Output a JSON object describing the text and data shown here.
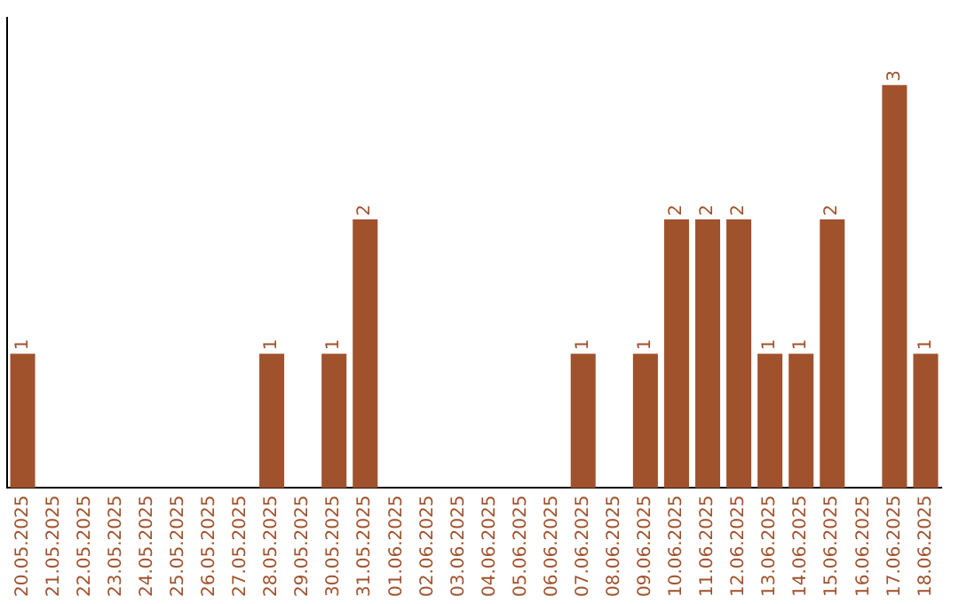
{
  "chart_data": {
    "type": "bar",
    "categories": [
      "20.05.2025",
      "21.05.2025",
      "22.05.2025",
      "23.05.2025",
      "24.05.2025",
      "25.05.2025",
      "26.05.2025",
      "27.05.2025",
      "28.05.2025",
      "29.05.2025",
      "30.05.2025",
      "31.05.2025",
      "01.06.2025",
      "02.06.2025",
      "03.06.2025",
      "04.06.2025",
      "05.06.2025",
      "06.06.2025",
      "07.06.2025",
      "08.06.2025",
      "09.06.2025",
      "10.06.2025",
      "11.06.2025",
      "12.06.2025",
      "13.06.2025",
      "14.06.2025",
      "15.06.2025",
      "16.06.2025",
      "17.06.2025",
      "18.06.2025"
    ],
    "values": [
      1,
      0,
      0,
      0,
      0,
      0,
      0,
      0,
      1,
      0,
      1,
      2,
      0,
      0,
      0,
      0,
      0,
      0,
      1,
      0,
      1,
      2,
      2,
      2,
      1,
      1,
      2,
      0,
      3,
      1
    ],
    "value_labels": [
      "1",
      null,
      null,
      null,
      null,
      null,
      null,
      null,
      "1",
      null,
      "1",
      "2",
      null,
      null,
      null,
      null,
      null,
      null,
      "1",
      null,
      "1",
      "2",
      "2",
      "2",
      "1",
      "1",
      "2",
      null,
      "3",
      "1"
    ],
    "color": "#a0522d",
    "grid": false,
    "legend": false,
    "tick_labels": "x"
  }
}
